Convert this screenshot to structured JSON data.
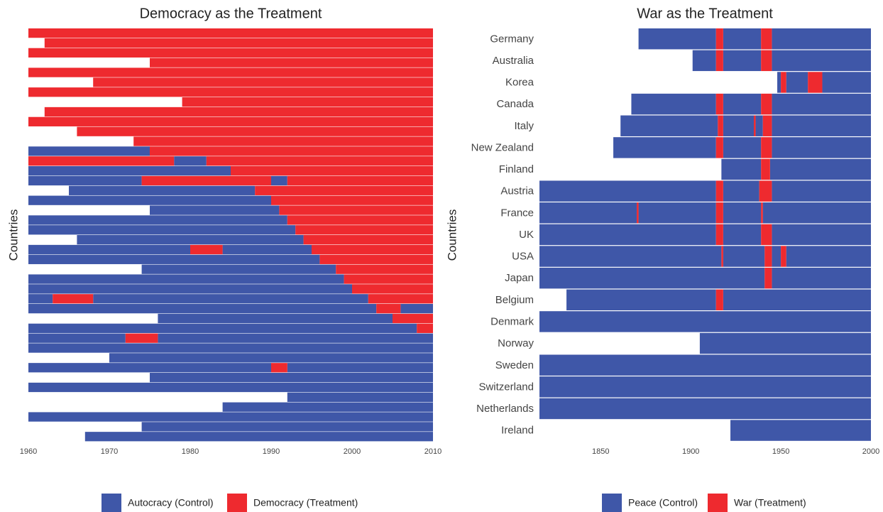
{
  "chart_data": [
    {
      "type": "panel",
      "title": "Democracy as the Treatment",
      "ylabel": "Countries",
      "xlim": [
        1960,
        2010
      ],
      "xticks": [
        1960,
        1970,
        1980,
        1990,
        2000,
        2010
      ],
      "series": [
        {
          "name": "Autocracy (Control)",
          "color": "#3f57a8",
          "rows": [
            [],
            [],
            [],
            [],
            [],
            [],
            [],
            [],
            [],
            [],
            [],
            [],
            [
              [
                1960,
                1975
              ]
            ],
            [
              [
                1978,
                1982
              ]
            ],
            [
              [
                1960,
                1985
              ]
            ],
            [
              [
                1960,
                1974
              ],
              [
                1990,
                1992
              ]
            ],
            [
              [
                1965,
                1988
              ]
            ],
            [
              [
                1960,
                1990
              ]
            ],
            [
              [
                1975,
                1991
              ]
            ],
            [
              [
                1960,
                1992
              ]
            ],
            [
              [
                1960,
                1993
              ]
            ],
            [
              [
                1966,
                1994
              ]
            ],
            [
              [
                1960,
                1980
              ],
              [
                1984,
                1995
              ]
            ],
            [
              [
                1960,
                1996
              ]
            ],
            [
              [
                1974,
                1998
              ]
            ],
            [
              [
                1960,
                1999
              ]
            ],
            [
              [
                1960,
                2000
              ]
            ],
            [
              [
                1960,
                1963
              ],
              [
                1968,
                2002
              ]
            ],
            [
              [
                1960,
                2003
              ],
              [
                2006,
                2010
              ]
            ],
            [
              [
                1976,
                2005
              ]
            ],
            [
              [
                1960,
                2008
              ]
            ],
            [
              [
                1960,
                1972
              ],
              [
                1976,
                2010
              ]
            ],
            [
              [
                1960,
                2010
              ]
            ],
            [
              [
                1970,
                2010
              ]
            ],
            [
              [
                1960,
                1990
              ],
              [
                1992,
                2010
              ]
            ],
            [
              [
                1975,
                2010
              ]
            ],
            [
              [
                1960,
                2010
              ]
            ],
            [
              [
                1992,
                2010
              ]
            ],
            [
              [
                1984,
                2010
              ]
            ],
            [
              [
                1960,
                2010
              ]
            ],
            [
              [
                1974,
                2010
              ]
            ],
            [
              [
                1967,
                2010
              ]
            ]
          ]
        },
        {
          "name": "Democracy (Treatment)",
          "color": "#ee2a2f",
          "rows": [
            [
              [
                1960,
                2010
              ]
            ],
            [
              [
                1962,
                2010
              ]
            ],
            [
              [
                1960,
                2010
              ]
            ],
            [
              [
                1975,
                2010
              ]
            ],
            [
              [
                1960,
                2010
              ]
            ],
            [
              [
                1968,
                2010
              ]
            ],
            [
              [
                1960,
                2010
              ]
            ],
            [
              [
                1979,
                2010
              ]
            ],
            [
              [
                1962,
                2010
              ]
            ],
            [
              [
                1960,
                2010
              ]
            ],
            [
              [
                1966,
                2010
              ]
            ],
            [
              [
                1973,
                2010
              ]
            ],
            [
              [
                1975,
                2010
              ]
            ],
            [
              [
                1960,
                1978
              ],
              [
                1982,
                2010
              ]
            ],
            [
              [
                1985,
                2010
              ]
            ],
            [
              [
                1974,
                1990
              ],
              [
                1992,
                2010
              ]
            ],
            [
              [
                1988,
                2010
              ]
            ],
            [
              [
                1990,
                2010
              ]
            ],
            [
              [
                1991,
                2010
              ]
            ],
            [
              [
                1992,
                2010
              ]
            ],
            [
              [
                1993,
                2010
              ]
            ],
            [
              [
                1994,
                2010
              ]
            ],
            [
              [
                1980,
                1984
              ],
              [
                1995,
                2010
              ]
            ],
            [
              [
                1996,
                2010
              ]
            ],
            [
              [
                1998,
                2010
              ]
            ],
            [
              [
                1999,
                2010
              ]
            ],
            [
              [
                2000,
                2010
              ]
            ],
            [
              [
                1963,
                1968
              ],
              [
                2002,
                2010
              ]
            ],
            [
              [
                2003,
                2006
              ]
            ],
            [
              [
                2005,
                2010
              ]
            ],
            [
              [
                2008,
                2010
              ]
            ],
            [
              [
                1972,
                1976
              ]
            ],
            [],
            [],
            [
              [
                1990,
                1992
              ]
            ],
            [],
            [],
            [],
            [],
            [],
            [],
            []
          ]
        }
      ]
    },
    {
      "type": "panel",
      "title": "War as the Treatment",
      "ylabel": "Countries",
      "xlim": [
        1816,
        2000
      ],
      "xticks": [
        1850,
        1900,
        1950,
        2000
      ],
      "categories": [
        "Germany",
        "Australia",
        "Korea",
        "Canada",
        "Italy",
        "New Zealand",
        "Finland",
        "Austria",
        "France",
        "UK",
        "USA",
        "Japan",
        "Belgium",
        "Denmark",
        "Norway",
        "Sweden",
        "Switzerland",
        "Netherlands",
        "Ireland"
      ],
      "series": [
        {
          "name": "Peace (Control)",
          "color": "#3f57a8",
          "rows": [
            [
              [
                1871,
                1914
              ],
              [
                1918,
                1939
              ],
              [
                1945,
                2000
              ]
            ],
            [
              [
                1901,
                1914
              ],
              [
                1918,
                1939
              ],
              [
                1945,
                2000
              ]
            ],
            [
              [
                1948,
                1950
              ],
              [
                1953,
                1965
              ],
              [
                1973,
                2000
              ]
            ],
            [
              [
                1867,
                1914
              ],
              [
                1918,
                1939
              ],
              [
                1945,
                2000
              ]
            ],
            [
              [
                1861,
                1915
              ],
              [
                1918,
                1935
              ],
              [
                1936,
                1940
              ],
              [
                1945,
                2000
              ]
            ],
            [
              [
                1857,
                1914
              ],
              [
                1918,
                1939
              ],
              [
                1945,
                2000
              ]
            ],
            [
              [
                1917,
                1939
              ],
              [
                1944,
                2000
              ]
            ],
            [
              [
                1816,
                1914
              ],
              [
                1918,
                1938
              ],
              [
                1945,
                2000
              ]
            ],
            [
              [
                1816,
                1870
              ],
              [
                1871,
                1914
              ],
              [
                1918,
                1939
              ],
              [
                1940,
                2000
              ]
            ],
            [
              [
                1816,
                1914
              ],
              [
                1918,
                1939
              ],
              [
                1945,
                2000
              ]
            ],
            [
              [
                1816,
                1917
              ],
              [
                1918,
                1941
              ],
              [
                1945,
                1950
              ],
              [
                1953,
                2000
              ]
            ],
            [
              [
                1816,
                1941
              ],
              [
                1945,
                2000
              ]
            ],
            [
              [
                1831,
                1914
              ],
              [
                1918,
                2000
              ]
            ],
            [
              [
                1816,
                2000
              ]
            ],
            [
              [
                1905,
                2000
              ]
            ],
            [
              [
                1816,
                2000
              ]
            ],
            [
              [
                1816,
                2000
              ]
            ],
            [
              [
                1816,
                2000
              ]
            ],
            [
              [
                1922,
                2000
              ]
            ]
          ]
        },
        {
          "name": "War (Treatment)",
          "color": "#ee2a2f",
          "rows": [
            [
              [
                1914,
                1918
              ],
              [
                1939,
                1945
              ]
            ],
            [
              [
                1914,
                1918
              ],
              [
                1939,
                1945
              ]
            ],
            [
              [
                1950,
                1953
              ],
              [
                1965,
                1973
              ]
            ],
            [
              [
                1914,
                1918
              ],
              [
                1939,
                1945
              ]
            ],
            [
              [
                1915,
                1918
              ],
              [
                1935,
                1936
              ],
              [
                1940,
                1945
              ]
            ],
            [
              [
                1914,
                1918
              ],
              [
                1939,
                1945
              ]
            ],
            [
              [
                1939,
                1944
              ]
            ],
            [
              [
                1914,
                1918
              ],
              [
                1938,
                1945
              ]
            ],
            [
              [
                1870,
                1871
              ],
              [
                1914,
                1918
              ],
              [
                1939,
                1940
              ]
            ],
            [
              [
                1914,
                1918
              ],
              [
                1939,
                1945
              ]
            ],
            [
              [
                1917,
                1918
              ],
              [
                1941,
                1945
              ],
              [
                1950,
                1953
              ]
            ],
            [
              [
                1941,
                1945
              ]
            ],
            [
              [
                1914,
                1918
              ]
            ],
            [],
            [],
            [],
            [],
            [],
            []
          ]
        }
      ]
    }
  ]
}
